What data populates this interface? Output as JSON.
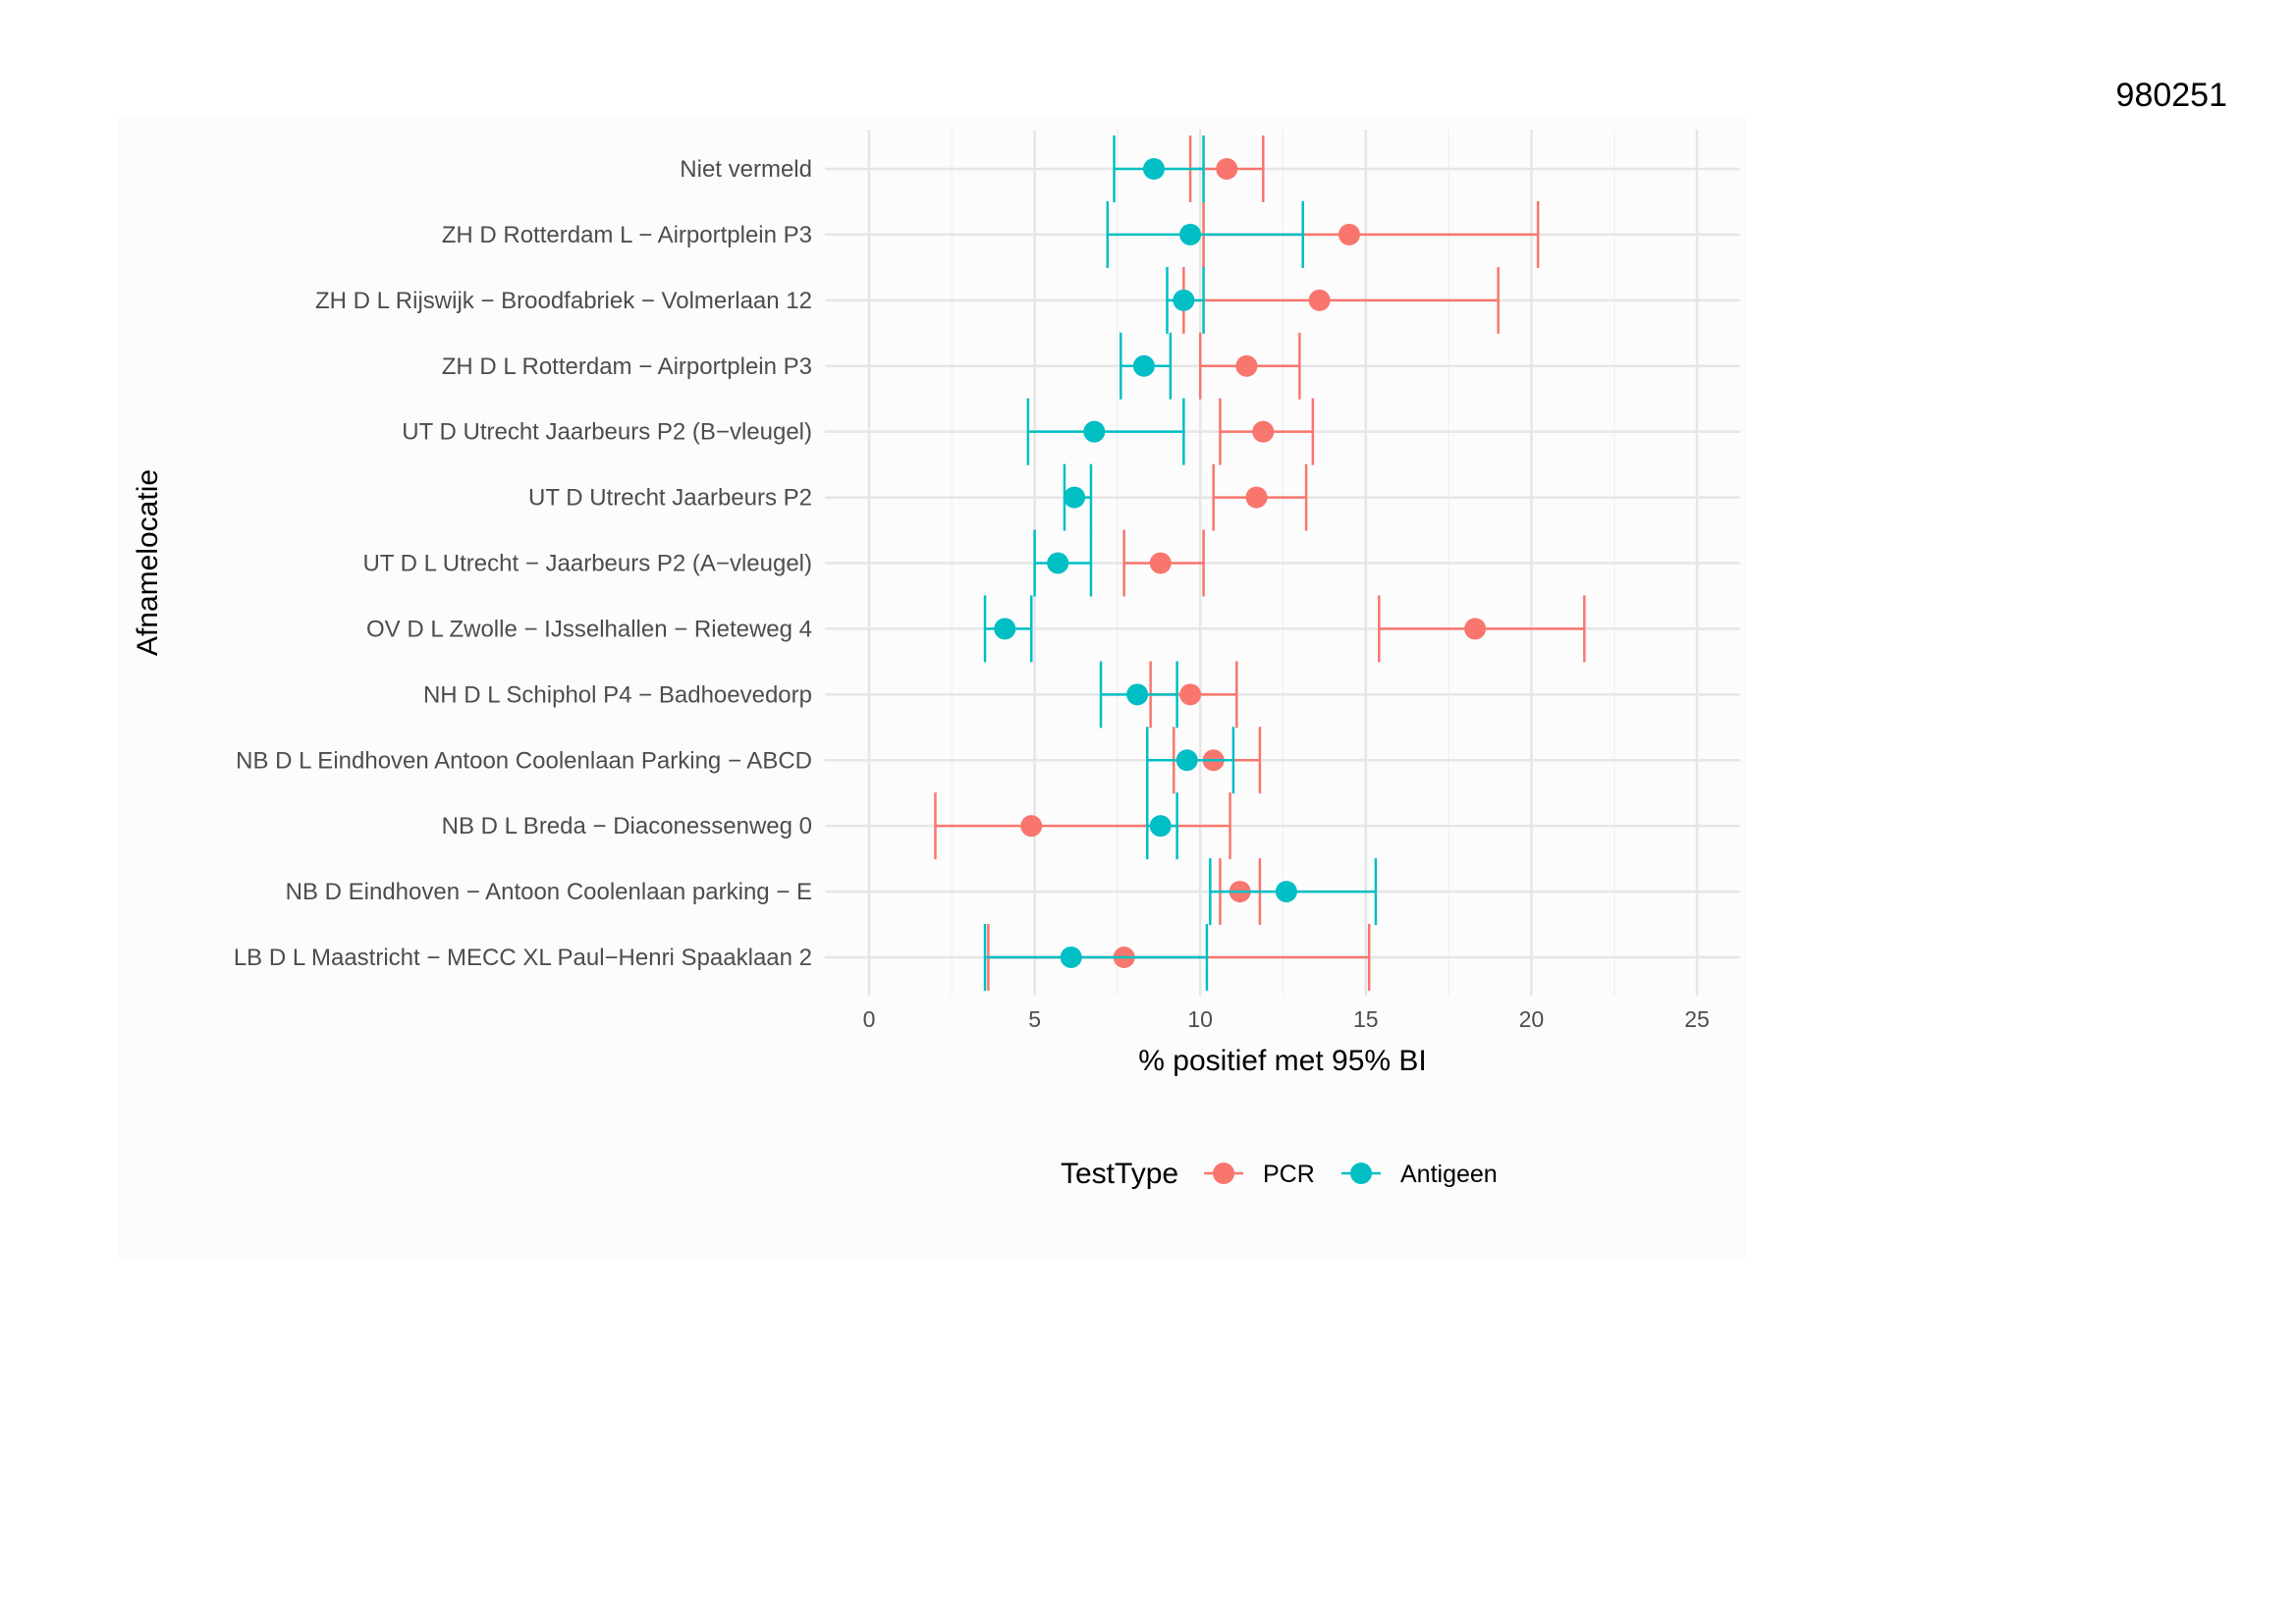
{
  "document_id": "980251",
  "chart_data": {
    "type": "errorbar-dotplot",
    "xlabel": "% positief met 95% BI",
    "ylabel": "Afnamelocatie",
    "xlim": [
      0,
      25
    ],
    "xticks": [
      0,
      5,
      10,
      15,
      20,
      25
    ],
    "grid": true,
    "legend": {
      "title": "TestType",
      "placement": "bottom",
      "entries": [
        "PCR",
        "Antigeen"
      ]
    },
    "colors": {
      "PCR": "#F8766D",
      "Antigeen": "#00BFC4"
    },
    "categories": [
      "Niet vermeld",
      "ZH D Rotterdam L − Airportplein P3",
      "ZH D L Rijswijk − Broodfabriek − Volmerlaan 12",
      "ZH D L Rotterdam − Airportplein P3",
      "UT D Utrecht Jaarbeurs P2 (B−vleugel)",
      "UT D Utrecht Jaarbeurs P2",
      "UT D L Utrecht − Jaarbeurs P2 (A−vleugel)",
      "OV D L Zwolle − IJsselhallen − Rieteweg 4",
      "NH D L Schiphol P4 − Badhoevedorp",
      "NB D L Eindhoven Antoon Coolenlaan Parking − ABCD",
      "NB D L Breda − Diaconessenweg 0",
      "NB D Eindhoven − Antoon Coolenlaan parking − E",
      "LB D L Maastricht − MECC XL Paul−Henri Spaaklaan 2"
    ],
    "series": [
      {
        "name": "PCR",
        "values": [
          10.8,
          14.5,
          13.6,
          11.4,
          11.9,
          11.7,
          8.8,
          18.3,
          9.7,
          10.4,
          4.9,
          11.2,
          7.7
        ],
        "lower": [
          9.7,
          10.1,
          9.5,
          10.0,
          10.6,
          10.4,
          7.7,
          15.4,
          8.5,
          9.2,
          2.0,
          10.6,
          3.6
        ],
        "upper": [
          11.9,
          20.2,
          19.0,
          13.0,
          13.4,
          13.2,
          10.1,
          21.6,
          11.1,
          11.8,
          10.9,
          11.8,
          15.1
        ]
      },
      {
        "name": "Antigeen",
        "values": [
          8.6,
          9.7,
          9.5,
          8.3,
          6.8,
          6.2,
          5.7,
          4.1,
          8.1,
          9.6,
          8.8,
          12.6,
          6.1
        ],
        "lower": [
          7.4,
          7.2,
          9.0,
          7.6,
          4.8,
          5.9,
          5.0,
          3.5,
          7.0,
          8.4,
          8.4,
          10.3,
          3.5
        ],
        "upper": [
          10.1,
          13.1,
          10.1,
          9.1,
          9.5,
          6.7,
          6.7,
          4.9,
          9.3,
          11.0,
          9.3,
          15.3,
          10.2
        ]
      }
    ]
  }
}
